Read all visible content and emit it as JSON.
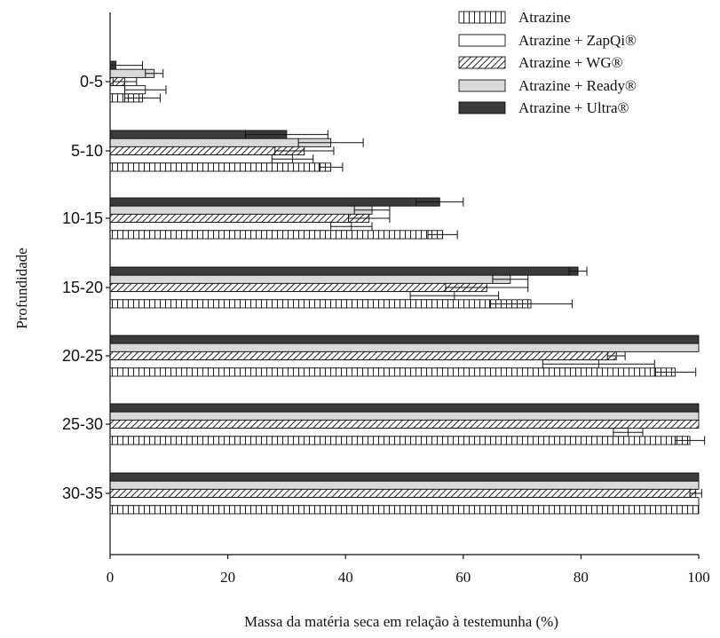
{
  "chart_data": {
    "type": "bar",
    "orientation": "horizontal",
    "xlabel": "Massa da matéria seca em relação à testemunha (%)",
    "ylabel": "Profundidade",
    "xlim": [
      0,
      100
    ],
    "x_ticks": [
      0,
      20,
      40,
      60,
      80,
      100
    ],
    "categories": [
      "0-5",
      "5-10",
      "10-15",
      "15-20",
      "20-25",
      "25-30",
      "30-35"
    ],
    "legend_position": "top-right",
    "grid": false,
    "series": [
      {
        "name": "Atrazine",
        "pattern": "grid",
        "values": [
          5.5,
          37.5,
          56.5,
          71.5,
          96.0,
          98.5,
          100.0
        ],
        "errors": [
          3.0,
          2.0,
          2.5,
          7.0,
          3.5,
          2.5,
          0.0
        ]
      },
      {
        "name": "Atrazine + ZapQi®",
        "pattern": "white",
        "values": [
          6.0,
          31.0,
          41.0,
          58.5,
          83.0,
          88.0,
          100.0
        ],
        "errors": [
          3.5,
          3.5,
          3.5,
          7.5,
          9.5,
          2.5,
          0.0
        ]
      },
      {
        "name": "Atrazine + WG®",
        "pattern": "hatch",
        "values": [
          2.5,
          33.0,
          44.0,
          64.0,
          86.0,
          100.0,
          99.5
        ],
        "errors": [
          2.0,
          5.0,
          3.5,
          7.0,
          1.5,
          0.0,
          1.0
        ]
      },
      {
        "name": "Atrazine + Ready®",
        "pattern": "light-gray",
        "values": [
          7.5,
          37.5,
          44.5,
          68.0,
          100.0,
          100.0,
          100.0
        ],
        "errors": [
          1.5,
          5.5,
          3.0,
          3.0,
          0.0,
          0.0,
          0.0
        ]
      },
      {
        "name": "Atrazine + Ultra®",
        "pattern": "dark",
        "values": [
          1.0,
          30.0,
          56.0,
          79.5,
          100.0,
          100.0,
          100.0
        ],
        "errors": [
          4.5,
          7.0,
          4.0,
          1.5,
          0.0,
          0.0,
          0.0
        ]
      }
    ]
  }
}
